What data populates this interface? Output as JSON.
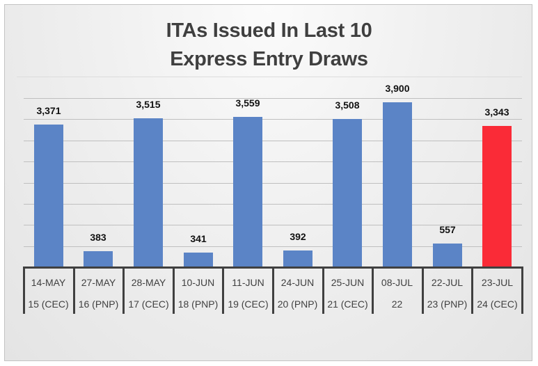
{
  "chart_data": {
    "type": "bar",
    "title": "ITAs Issued In Last 10 Express Entry Draws",
    "title_lines": [
      "ITAs Issued In Last 10",
      "Express Entry Draws"
    ],
    "xlabel": "",
    "ylabel": "",
    "ylim": [
      0,
      4000
    ],
    "grid": true,
    "legend": null,
    "categories": [
      "14-MAY",
      "27-MAY",
      "28-MAY",
      "10-JUN",
      "11-JUN",
      "24-JUN",
      "25-JUN",
      "08-JUL",
      "22-JUL",
      "23-JUL"
    ],
    "subcategories": [
      "15 (CEC)",
      "16 (PNP)",
      "17 (CEC)",
      "18 (PNP)",
      "19 (CEC)",
      "20 (PNP)",
      "21 (CEC)",
      "22",
      "23 (PNP)",
      "24 (CEC)"
    ],
    "values": [
      3371,
      383,
      3515,
      341,
      3559,
      392,
      3508,
      3900,
      557,
      3343
    ],
    "value_labels": [
      "3,371",
      "383",
      "3,515",
      "341",
      "3,559",
      "392",
      "3,508",
      "3,900",
      "557",
      "3,343"
    ],
    "colors": [
      "#5b84c6",
      "#5b84c6",
      "#5b84c6",
      "#5b84c6",
      "#5b84c6",
      "#5b84c6",
      "#5b84c6",
      "#5b84c6",
      "#5b84c6",
      "#fa2b37"
    ],
    "highlight_index": 9
  },
  "colors": {
    "bar": "#5b84c6",
    "highlight_bar": "#fa2b37",
    "axis": "#404040",
    "grid": "#bfbfbf",
    "title": "#3f3f3f"
  }
}
